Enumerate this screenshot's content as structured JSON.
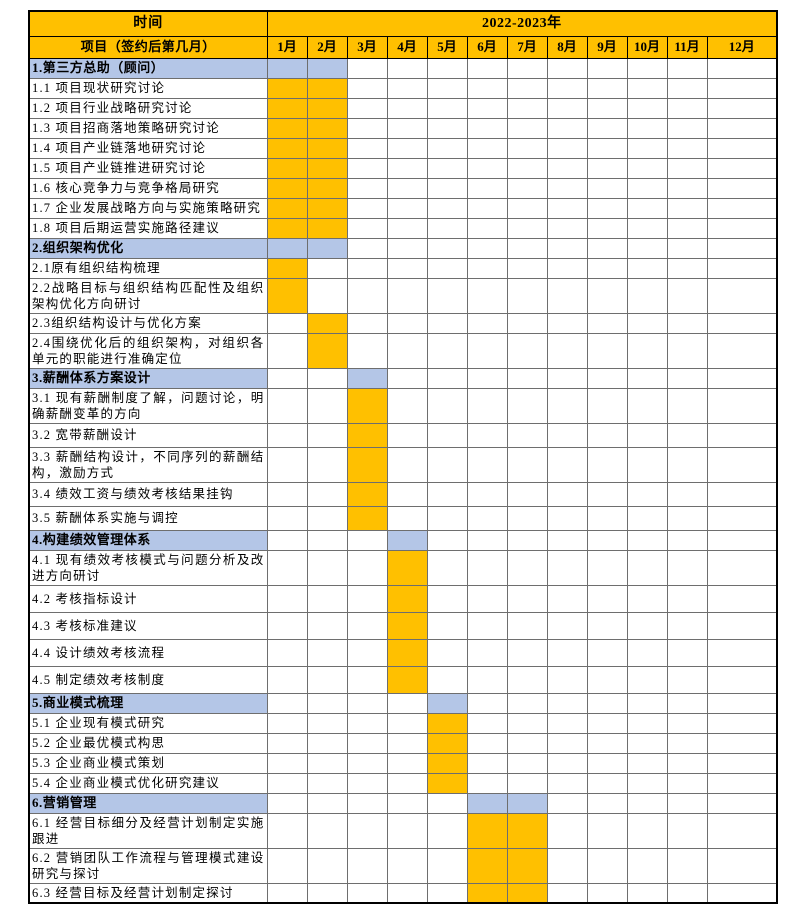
{
  "table": {
    "corner_row1": "时间",
    "corner_row2": "项目（签约后第几月）",
    "year_header": "2022-2023年",
    "months": [
      "1月",
      "2月",
      "3月",
      "4月",
      "5月",
      "6月",
      "7月",
      "8月",
      "9月",
      "10月",
      "11月",
      "12月"
    ],
    "colors": {
      "header_bg": "#FFC000",
      "bar_fill": "#FFC000",
      "section_bg": "#B4C6E7",
      "grid_line": "#6e6e6e",
      "outer_border": "#000000"
    },
    "sections": [
      {
        "title": "1.第三方总助（顾问）",
        "months": [
          1,
          2
        ],
        "tasks": [
          {
            "label": "1.1 项目现状研究讨论",
            "months": [
              1,
              2
            ]
          },
          {
            "label": "1.2 项目行业战略研究讨论",
            "months": [
              1,
              2
            ]
          },
          {
            "label": "1.3 项目招商落地策略研究讨论",
            "months": [
              1,
              2
            ]
          },
          {
            "label": "1.4 项目产业链落地研究讨论",
            "months": [
              1,
              2
            ]
          },
          {
            "label": "1.5 项目产业链推进研究讨论",
            "months": [
              1,
              2
            ]
          },
          {
            "label": "1.6 核心竞争力与竞争格局研究",
            "months": [
              1,
              2
            ]
          },
          {
            "label": "1.7 企业发展战略方向与实施策略研究",
            "months": [
              1,
              2
            ]
          },
          {
            "label": "1.8 项目后期运营实施路径建议",
            "months": [
              1,
              2
            ]
          }
        ]
      },
      {
        "title": "2.组织架构优化",
        "months": [
          1,
          2
        ],
        "tasks": [
          {
            "label": "2.1原有组织结构梳理",
            "months": [
              1
            ]
          },
          {
            "label": "2.2战略目标与组织结构匹配性及组织架构优化方向研讨",
            "months": [
              1
            ]
          },
          {
            "label": "2.3组织结构设计与优化方案",
            "months": [
              2
            ]
          },
          {
            "label": "2.4围绕优化后的组织架构，对组织各单元的职能进行准确定位",
            "months": [
              2
            ]
          }
        ]
      },
      {
        "title": "3.薪酬体系方案设计",
        "months": [
          3
        ],
        "tasks": [
          {
            "label": "3.1 现有薪酬制度了解，问题讨论，明确薪酬变革的方向",
            "months": [
              3
            ]
          },
          {
            "label": "3.2 宽带薪酬设计",
            "months": [
              3
            ]
          },
          {
            "label": "3.3 薪酬结构设计，不同序列的薪酬结构，激励方式",
            "months": [
              3
            ]
          },
          {
            "label": "3.4 绩效工资与绩效考核结果挂钩",
            "months": [
              3
            ]
          },
          {
            "label": "3.5 薪酬体系实施与调控",
            "months": [
              3
            ]
          }
        ]
      },
      {
        "title": "4.构建绩效管理体系",
        "months": [
          4
        ],
        "tasks": [
          {
            "label": "4.1 现有绩效考核模式与问题分析及改进方向研讨",
            "months": [
              4
            ]
          },
          {
            "label": "4.2 考核指标设计",
            "months": [
              4
            ]
          },
          {
            "label": "4.3 考核标准建议",
            "months": [
              4
            ]
          },
          {
            "label": "4.4 设计绩效考核流程",
            "months": [
              4
            ]
          },
          {
            "label": "4.5 制定绩效考核制度",
            "months": [
              4
            ]
          }
        ]
      },
      {
        "title": "5.商业模式梳理",
        "months": [
          5
        ],
        "tasks": [
          {
            "label": "5.1 企业现有模式研究",
            "months": [
              5
            ]
          },
          {
            "label": "5.2 企业最优模式构思",
            "months": [
              5
            ]
          },
          {
            "label": "5.3 企业商业模式策划",
            "months": [
              5
            ]
          },
          {
            "label": "5.4 企业商业模式优化研究建议",
            "months": [
              5
            ]
          }
        ]
      },
      {
        "title": "6.营销管理",
        "months": [
          6,
          7
        ],
        "tasks": [
          {
            "label": "6.1 经营目标细分及经营计划制定实施跟进",
            "months": [
              6,
              7
            ]
          },
          {
            "label": "6.2 营销团队工作流程与管理模式建设研究与探讨",
            "months": [
              6,
              7
            ]
          },
          {
            "label": "6.3 经营目标及经营计划制定探讨",
            "months": [
              6,
              7
            ]
          }
        ]
      }
    ]
  }
}
